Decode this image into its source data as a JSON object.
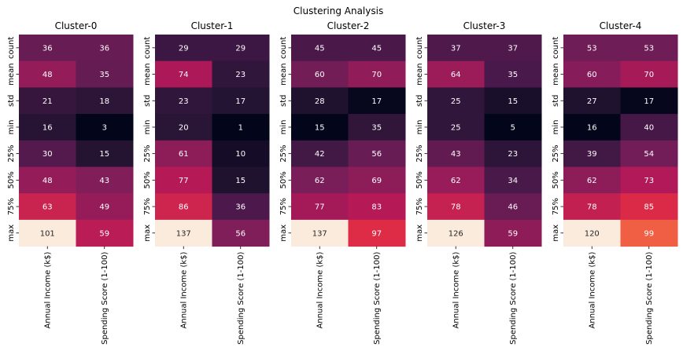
{
  "title": "Clustering Analysis",
  "chart_data": {
    "type": "heatmap",
    "suptitle": "Clustering Analysis",
    "row_labels": [
      "count",
      "mean",
      "std",
      "min",
      "25%",
      "50%",
      "75%",
      "max"
    ],
    "col_labels": [
      "Annual Income (k$)",
      "Spending Score (1-100)"
    ],
    "colormap": "rocket",
    "colorbar": false,
    "panels": [
      {
        "title": "Cluster-0",
        "values": [
          [
            36,
            36
          ],
          [
            48,
            35
          ],
          [
            21,
            18
          ],
          [
            16,
            3
          ],
          [
            30,
            15
          ],
          [
            48,
            43
          ],
          [
            63,
            49
          ],
          [
            101,
            59
          ]
        ]
      },
      {
        "title": "Cluster-1",
        "values": [
          [
            29,
            29
          ],
          [
            74,
            23
          ],
          [
            23,
            17
          ],
          [
            20,
            1
          ],
          [
            61,
            10
          ],
          [
            77,
            15
          ],
          [
            86,
            36
          ],
          [
            137,
            56
          ]
        ]
      },
      {
        "title": "Cluster-2",
        "values": [
          [
            45,
            45
          ],
          [
            60,
            70
          ],
          [
            28,
            17
          ],
          [
            15,
            35
          ],
          [
            42,
            56
          ],
          [
            62,
            69
          ],
          [
            77,
            83
          ],
          [
            137,
            97
          ]
        ]
      },
      {
        "title": "Cluster-3",
        "values": [
          [
            37,
            37
          ],
          [
            64,
            35
          ],
          [
            25,
            15
          ],
          [
            25,
            5
          ],
          [
            43,
            23
          ],
          [
            62,
            34
          ],
          [
            78,
            46
          ],
          [
            126,
            59
          ]
        ]
      },
      {
        "title": "Cluster-4",
        "values": [
          [
            53,
            53
          ],
          [
            60,
            70
          ],
          [
            27,
            17
          ],
          [
            16,
            40
          ],
          [
            39,
            54
          ],
          [
            62,
            73
          ],
          [
            78,
            85
          ],
          [
            120,
            99
          ]
        ]
      }
    ]
  }
}
